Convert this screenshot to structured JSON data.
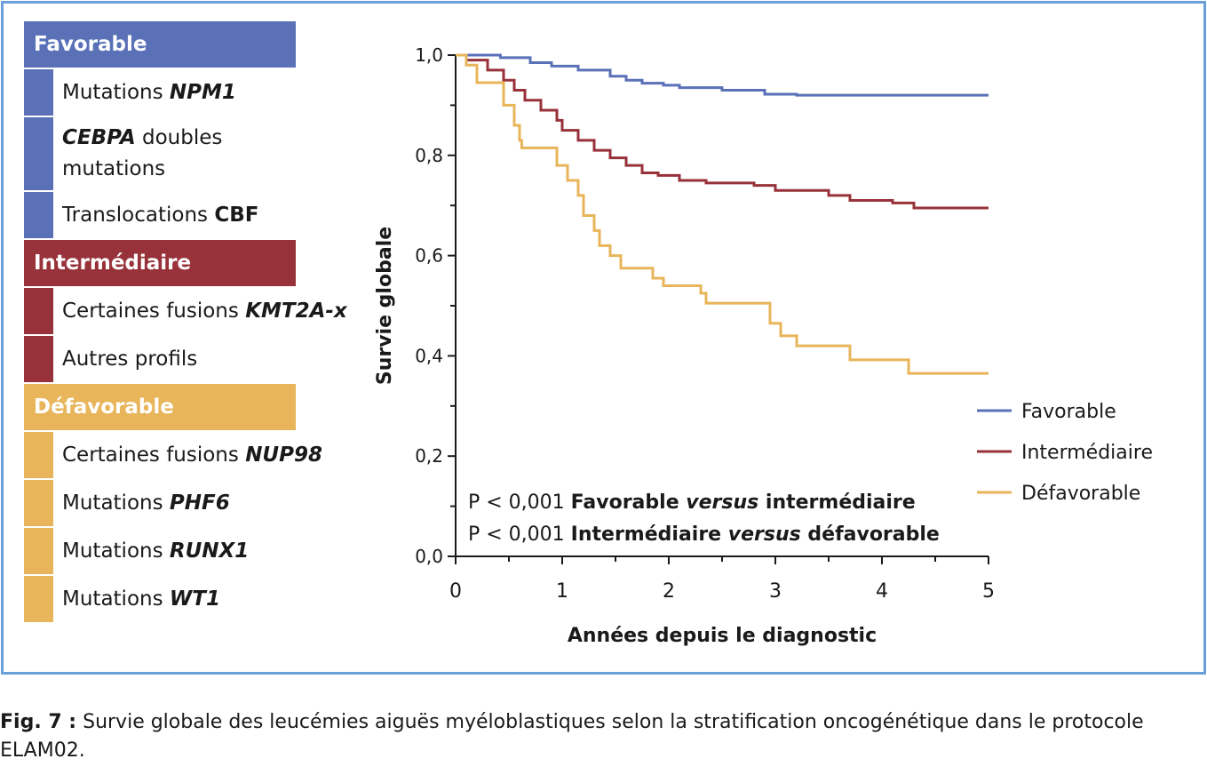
{
  "colors": {
    "favorable": "#5a71b8",
    "intermediate": "#98323a",
    "adverse": "#e8b55a",
    "frame": "#6aa0da"
  },
  "risk_table": {
    "groups": [
      {
        "header": "Favorable",
        "color": "#5a71b8",
        "rows": [
          {
            "parts": [
              {
                "t": "Mutations "
              },
              {
                "t": "NPM1",
                "s": "em"
              }
            ]
          },
          {
            "parts": [
              {
                "t": "CEBPA",
                "s": "em"
              },
              {
                "t": " doubles"
              },
              {
                "t": "mutations",
                "br": true
              }
            ]
          },
          {
            "parts": [
              {
                "t": "Translocations "
              },
              {
                "t": "CBF",
                "s": "b"
              }
            ]
          }
        ]
      },
      {
        "header": "Intermédiaire",
        "color": "#98323a",
        "rows": [
          {
            "parts": [
              {
                "t": "Certaines fusions "
              },
              {
                "t": "KMT2A-x",
                "s": "em"
              }
            ]
          },
          {
            "parts": [
              {
                "t": "Autres profils"
              }
            ]
          }
        ]
      },
      {
        "header": "Défavorable",
        "color": "#e8b55a",
        "rows": [
          {
            "parts": [
              {
                "t": "Certaines fusions "
              },
              {
                "t": "NUP98",
                "s": "em"
              }
            ]
          },
          {
            "parts": [
              {
                "t": "Mutations "
              },
              {
                "t": "PHF6",
                "s": "em"
              }
            ]
          },
          {
            "parts": [
              {
                "t": "Mutations "
              },
              {
                "t": "RUNX1",
                "s": "em"
              }
            ]
          },
          {
            "parts": [
              {
                "t": "Mutations "
              },
              {
                "t": "WT1",
                "s": "em"
              }
            ]
          }
        ]
      }
    ]
  },
  "chart_data": {
    "type": "line",
    "step": true,
    "xlabel": "Années depuis le diagnostic",
    "ylabel": "Survie globale",
    "xlim": [
      0,
      5
    ],
    "ylim": [
      0,
      1
    ],
    "x_ticks": [
      "0",
      "1",
      "2",
      "3",
      "4",
      "5"
    ],
    "y_ticks": [
      "0,0",
      "0,2",
      "0,4",
      "0,6",
      "0,8",
      "1,0"
    ],
    "grid": false,
    "legend_position": "lower-right",
    "series": [
      {
        "name": "Favorable",
        "color": "#5a71b8",
        "points": [
          [
            0,
            1.0
          ],
          [
            0.42,
            0.995
          ],
          [
            0.7,
            0.985
          ],
          [
            0.9,
            0.978
          ],
          [
            1.15,
            0.97
          ],
          [
            1.45,
            0.958
          ],
          [
            1.6,
            0.95
          ],
          [
            1.75,
            0.944
          ],
          [
            1.95,
            0.94
          ],
          [
            2.1,
            0.935
          ],
          [
            2.5,
            0.93
          ],
          [
            2.9,
            0.922
          ],
          [
            3.2,
            0.92
          ],
          [
            5.0,
            0.92
          ]
        ]
      },
      {
        "name": "Intermédiaire",
        "color": "#98323a",
        "points": [
          [
            0,
            1.0
          ],
          [
            0.1,
            0.99
          ],
          [
            0.3,
            0.97
          ],
          [
            0.45,
            0.95
          ],
          [
            0.55,
            0.93
          ],
          [
            0.65,
            0.91
          ],
          [
            0.8,
            0.89
          ],
          [
            0.95,
            0.87
          ],
          [
            1.0,
            0.85
          ],
          [
            1.15,
            0.83
          ],
          [
            1.3,
            0.81
          ],
          [
            1.45,
            0.795
          ],
          [
            1.6,
            0.78
          ],
          [
            1.75,
            0.765
          ],
          [
            1.9,
            0.76
          ],
          [
            2.1,
            0.75
          ],
          [
            2.35,
            0.745
          ],
          [
            2.8,
            0.74
          ],
          [
            3.0,
            0.73
          ],
          [
            3.5,
            0.72
          ],
          [
            3.7,
            0.71
          ],
          [
            4.1,
            0.705
          ],
          [
            4.3,
            0.695
          ],
          [
            5.0,
            0.695
          ]
        ]
      },
      {
        "name": "Défavorable",
        "color": "#e8b55a",
        "points": [
          [
            0,
            1.0
          ],
          [
            0.1,
            0.98
          ],
          [
            0.2,
            0.945
          ],
          [
            0.45,
            0.9
          ],
          [
            0.55,
            0.86
          ],
          [
            0.6,
            0.83
          ],
          [
            0.62,
            0.815
          ],
          [
            0.95,
            0.78
          ],
          [
            1.05,
            0.75
          ],
          [
            1.15,
            0.72
          ],
          [
            1.2,
            0.68
          ],
          [
            1.3,
            0.65
          ],
          [
            1.35,
            0.62
          ],
          [
            1.45,
            0.6
          ],
          [
            1.55,
            0.575
          ],
          [
            1.85,
            0.555
          ],
          [
            1.95,
            0.54
          ],
          [
            2.3,
            0.525
          ],
          [
            2.35,
            0.505
          ],
          [
            2.95,
            0.465
          ],
          [
            3.05,
            0.44
          ],
          [
            3.2,
            0.42
          ],
          [
            3.7,
            0.392
          ],
          [
            4.25,
            0.365
          ],
          [
            5.0,
            0.365
          ]
        ]
      }
    ],
    "annotations": [
      [
        {
          "t": "P < 0,001 "
        },
        {
          "t": "Favorable ",
          "s": "b"
        },
        {
          "t": "versus",
          "s": "bi"
        },
        {
          "t": " intermédiaire",
          "s": "b"
        }
      ],
      [
        {
          "t": "P < 0,001 "
        },
        {
          "t": "Intermédiaire ",
          "s": "b"
        },
        {
          "t": "versus",
          "s": "bi"
        },
        {
          "t": " défavorable",
          "s": "b"
        }
      ]
    ]
  },
  "caption": {
    "label": "Fig. 7 :",
    "text": " Survie globale des leucémies aiguës myéloblastiques selon la stratification oncogénétique dans le protocole ELAM02."
  }
}
